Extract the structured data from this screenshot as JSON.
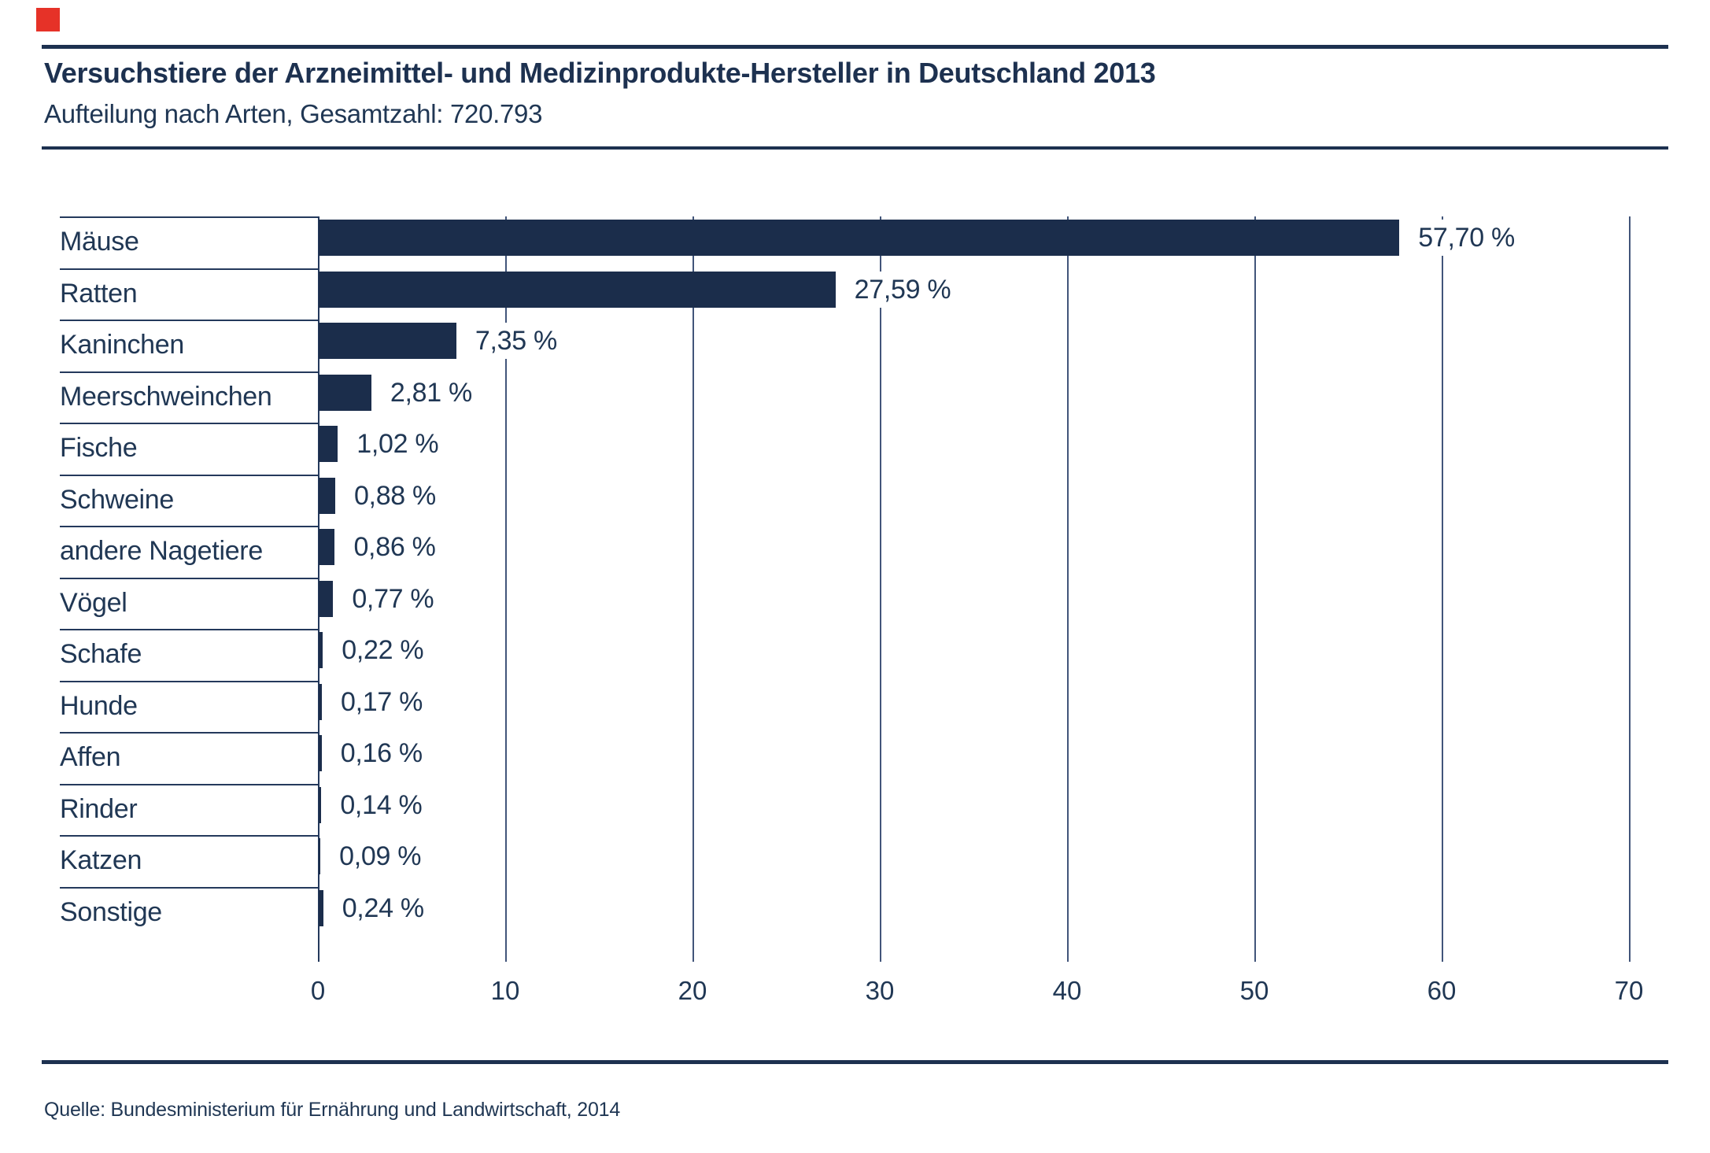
{
  "brand": {
    "color": "#e63228"
  },
  "header": {
    "title": "Versuchstiere der Arzneimittel- und Medizinprodukte-Hersteller in Deutschland 2013",
    "subtitle": "Aufteilung nach Arten, Gesamtzahl: 720.793"
  },
  "chart_data": {
    "type": "bar",
    "orientation": "horizontal",
    "categories": [
      "Mäuse",
      "Ratten",
      "Kaninchen",
      "Meerschweinchen",
      "Fische",
      "Schweine",
      "andere Nagetiere",
      "Vögel",
      "Schafe",
      "Hunde",
      "Affen",
      "Rinder",
      "Katzen",
      "Sonstige"
    ],
    "values": [
      57.7,
      27.59,
      7.35,
      2.81,
      1.02,
      0.88,
      0.86,
      0.77,
      0.22,
      0.17,
      0.16,
      0.14,
      0.09,
      0.24
    ],
    "value_labels": [
      "57,70 %",
      "27,59 %",
      "7,35 %",
      "2,81 %",
      "1,02 %",
      "0,88 %",
      "0,86 %",
      "0,77 %",
      "0,22 %",
      "0,17 %",
      "0,16 %",
      "0,14 %",
      "0,09 %",
      "0,24 %"
    ],
    "title": "Versuchstiere der Arzneimittel- und Medizinprodukte-Hersteller in Deutschland 2013",
    "subtitle": "Aufteilung nach Arten, Gesamtzahl: 720.793",
    "xlabel": "",
    "ylabel": "",
    "xlim": [
      0,
      70
    ],
    "x_ticks": [
      0,
      10,
      20,
      30,
      40,
      50,
      60,
      70
    ],
    "x_tick_labels": [
      "0",
      "10",
      "20",
      "30",
      "40",
      "50",
      "60",
      "70"
    ],
    "grid": true,
    "legend": false,
    "bar_color": "#1b2d4b"
  },
  "footer": {
    "source": "Quelle: Bundesministerium für Ernährung und Landwirtschaft, 2014"
  }
}
